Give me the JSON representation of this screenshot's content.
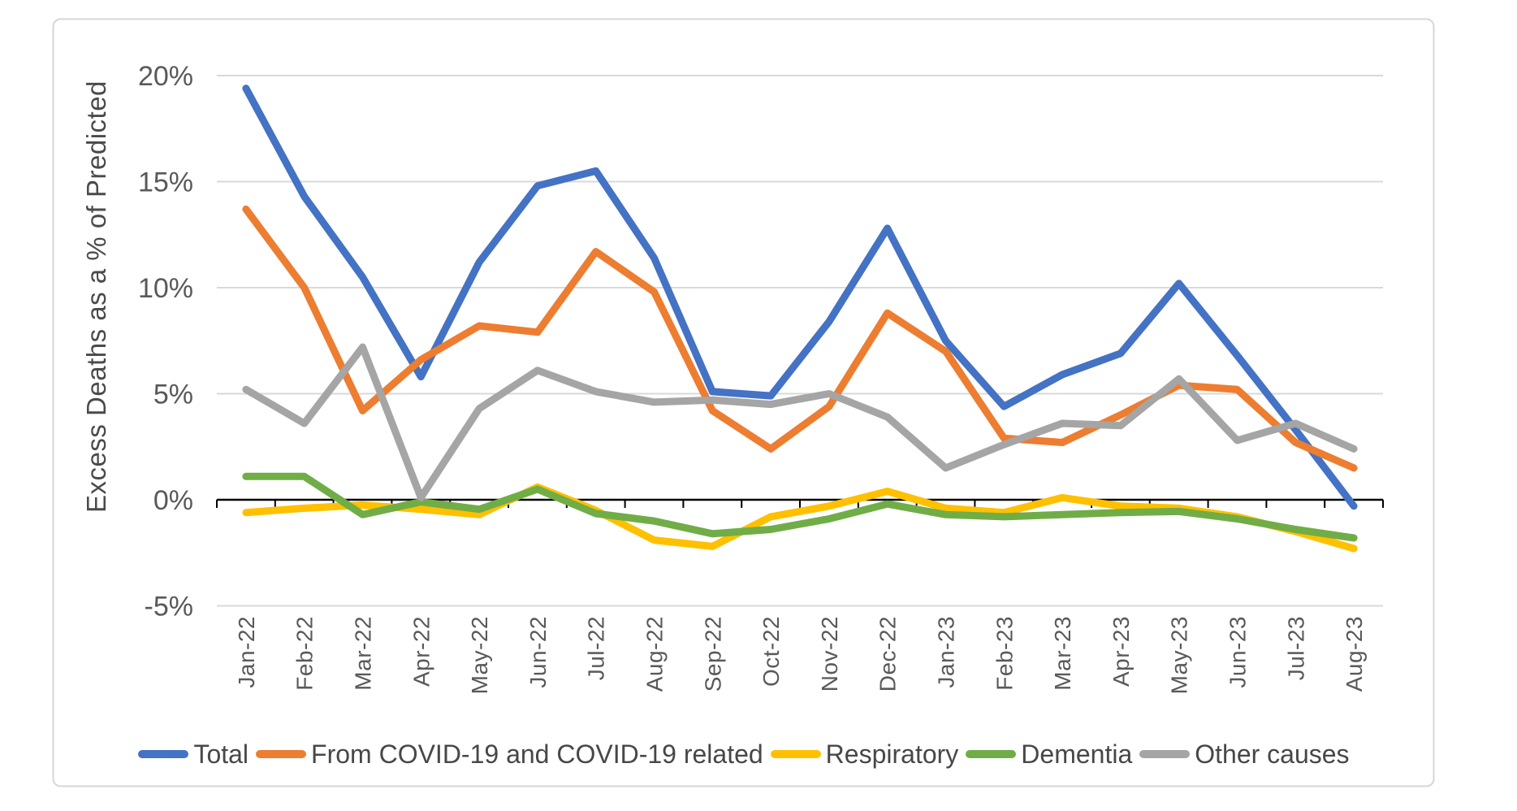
{
  "chart_data": {
    "type": "line",
    "title": "",
    "xlabel": "",
    "ylabel": "Excess Deaths as a % of Predicted",
    "ylim": [
      -5,
      20
    ],
    "grid": "horizontal",
    "legend_position": "bottom",
    "y_ticks": [
      {
        "value": 20,
        "label": "20%"
      },
      {
        "value": 15,
        "label": "15%"
      },
      {
        "value": 10,
        "label": "10%"
      },
      {
        "value": 5,
        "label": "5%"
      },
      {
        "value": 0,
        "label": "0%"
      },
      {
        "value": -5,
        "label": "-5%"
      }
    ],
    "categories": [
      "Jan-22",
      "Feb-22",
      "Mar-22",
      "Apr-22",
      "May-22",
      "Jun-22",
      "Jul-22",
      "Aug-22",
      "Sep-22",
      "Oct-22",
      "Nov-22",
      "Dec-22",
      "Jan-23",
      "Feb-23",
      "Mar-23",
      "Apr-23",
      "May-23",
      "Jun-23",
      "Jul-23",
      "Aug-23"
    ],
    "series": [
      {
        "name": "Total",
        "color": "#4472C4",
        "values": [
          19.4,
          14.3,
          10.5,
          5.8,
          11.2,
          14.8,
          15.5,
          11.4,
          5.1,
          4.9,
          8.4,
          12.8,
          7.5,
          4.4,
          5.9,
          6.9,
          10.2,
          6.8,
          3.3,
          -0.3
        ]
      },
      {
        "name": "From COVID-19 and COVID-19 related",
        "color": "#ED7D31",
        "values": [
          13.7,
          10.0,
          4.2,
          6.6,
          8.2,
          7.9,
          11.7,
          9.8,
          4.2,
          2.4,
          4.4,
          8.8,
          7.0,
          2.9,
          2.7,
          4.0,
          5.4,
          5.2,
          2.7,
          1.5
        ]
      },
      {
        "name": "Respiratory",
        "color": "#FFC000",
        "values": [
          -0.6,
          -0.4,
          -0.25,
          -0.45,
          -0.7,
          0.6,
          -0.5,
          -1.9,
          -2.2,
          -0.8,
          -0.3,
          0.4,
          -0.4,
          -0.6,
          0.1,
          -0.3,
          -0.4,
          -0.8,
          -1.5,
          -2.3
        ]
      },
      {
        "name": "Dementia",
        "color": "#70AD47",
        "values": [
          1.1,
          1.1,
          -0.7,
          -0.1,
          -0.45,
          0.5,
          -0.65,
          -1.0,
          -1.6,
          -1.4,
          -0.9,
          -0.2,
          -0.7,
          -0.8,
          -0.7,
          -0.6,
          -0.55,
          -0.9,
          -1.4,
          -1.8
        ]
      },
      {
        "name": "Other causes",
        "color": "#A5A5A5",
        "values": [
          5.2,
          3.6,
          7.2,
          0.1,
          4.3,
          6.1,
          5.1,
          4.6,
          4.7,
          4.5,
          5.0,
          3.9,
          1.5,
          2.6,
          3.6,
          3.5,
          5.7,
          2.8,
          3.6,
          2.4
        ]
      }
    ],
    "colors": {
      "gridline": "#D9D9D9",
      "axis": "#000000",
      "tick_label": "#595959",
      "frame_border": "#D6D6D6"
    }
  }
}
